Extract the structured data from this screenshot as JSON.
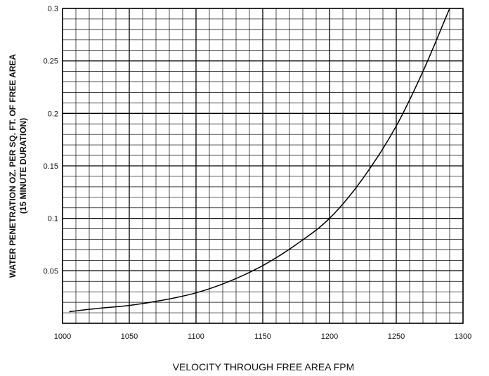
{
  "chart_data": {
    "type": "line",
    "title": "",
    "xlabel": "VELOCITY THROUGH FREE AREA FPM",
    "ylabel_line1": "WATER PENETRATION OZ. PER SQ. FT. OF FREE AREA",
    "ylabel_line2": "(15  MINUTE DURATION)",
    "xlim": [
      1000,
      1300
    ],
    "ylim": [
      0,
      0.3
    ],
    "x_ticks": [
      "1000",
      "1050",
      "1100",
      "1150",
      "1200",
      "1250",
      "1300"
    ],
    "y_ticks": [
      "0.05",
      "0.1",
      "0.15",
      "0.2",
      "0.25",
      "0.3"
    ],
    "grid": true,
    "legend": "none",
    "series": [
      {
        "x": [
          1005,
          1025,
          1050,
          1075,
          1100,
          1125,
          1150,
          1175,
          1200,
          1225,
          1250,
          1270,
          1290
        ],
        "y": [
          0.011,
          0.014,
          0.017,
          0.022,
          0.029,
          0.04,
          0.055,
          0.075,
          0.1,
          0.138,
          0.188,
          0.24,
          0.3
        ]
      }
    ]
  }
}
